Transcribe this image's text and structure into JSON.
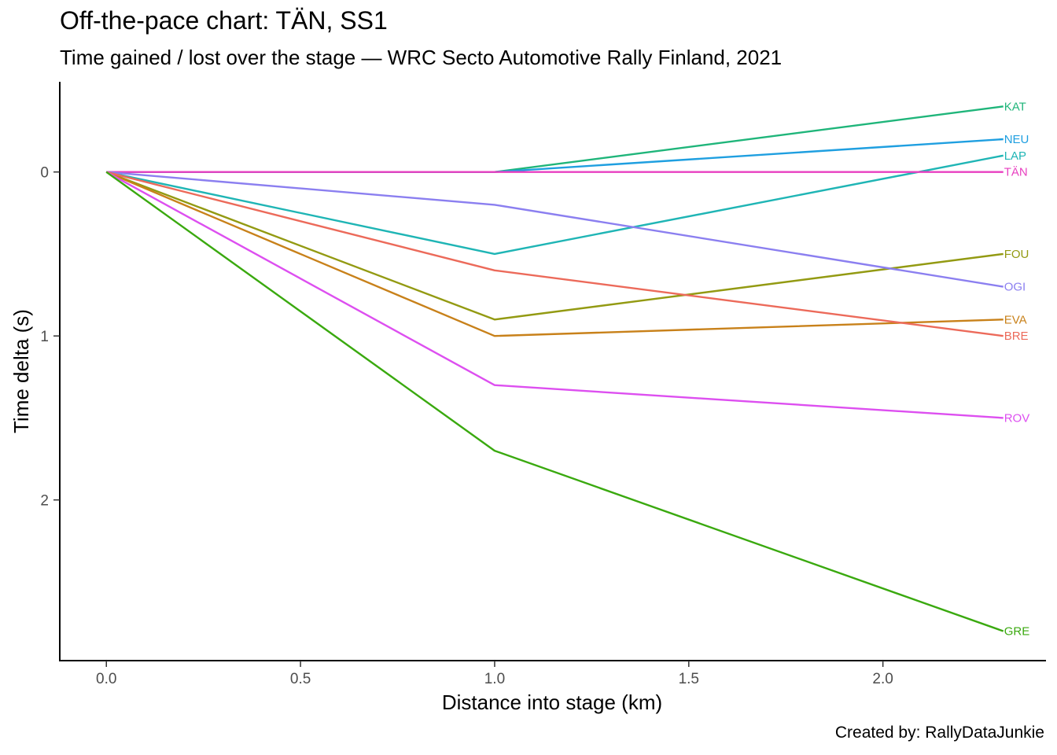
{
  "title": "Off-the-pace chart: TÄN, SS1",
  "subtitle": "Time gained / lost over the stage — WRC Secto Automotive Rally Finland, 2021",
  "caption": "Created by: RallyDataJunkie",
  "chart_data": {
    "type": "line",
    "xlabel": "Distance into stage (km)",
    "ylabel": "Time delta (s)",
    "xlim": [
      -0.12,
      2.42
    ],
    "ylim": [
      -0.55,
      2.98
    ],
    "y_reversed": true,
    "x_ticks": [
      0.0,
      0.5,
      1.0,
      1.5,
      2.0
    ],
    "x_tick_labels": [
      "0.0",
      "0.5",
      "1.0",
      "1.5",
      "2.0"
    ],
    "y_ticks": [
      0,
      1,
      2
    ],
    "y_tick_labels": [
      "0",
      "1",
      "2"
    ],
    "grid": false,
    "legend": "none (direct labels at line ends)",
    "x": [
      0,
      1.0,
      2.31
    ],
    "series": [
      {
        "name": "KAT",
        "color": "#1fb57a",
        "values": [
          0,
          0,
          -0.4
        ]
      },
      {
        "name": "NEU",
        "color": "#1f9fe0",
        "values": [
          0,
          0,
          -0.2
        ]
      },
      {
        "name": "LAP",
        "color": "#1fb5b5",
        "values": [
          0,
          0.5,
          -0.1
        ]
      },
      {
        "name": "TÄN",
        "color": "#e83fc0",
        "values": [
          0,
          0,
          0
        ]
      },
      {
        "name": "FOU",
        "color": "#939a12",
        "values": [
          0,
          0.9,
          0.5
        ]
      },
      {
        "name": "OGI",
        "color": "#8b7ff0",
        "values": [
          0,
          0.2,
          0.7
        ]
      },
      {
        "name": "EVA",
        "color": "#c8811a",
        "values": [
          0,
          1.0,
          0.9
        ]
      },
      {
        "name": "BRE",
        "color": "#ec6a5a",
        "values": [
          0,
          0.6,
          1.0
        ]
      },
      {
        "name": "ROV",
        "color": "#dd4ff0",
        "values": [
          0,
          1.3,
          1.5
        ]
      },
      {
        "name": "GRE",
        "color": "#3aa90f",
        "values": [
          0,
          1.7,
          2.8
        ]
      }
    ]
  }
}
